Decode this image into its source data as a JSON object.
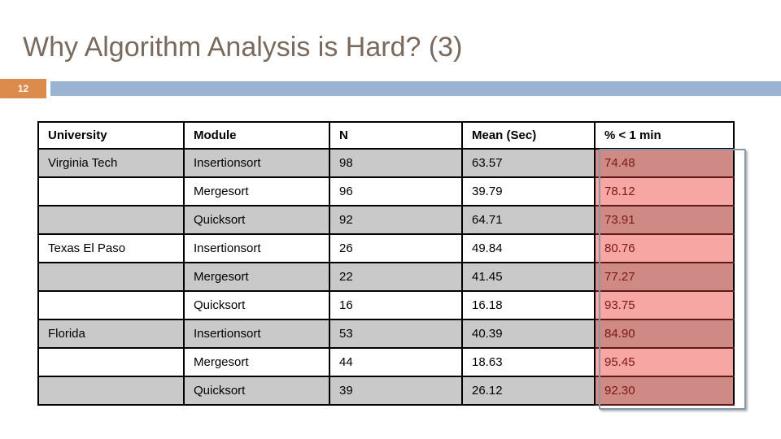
{
  "slide": {
    "title": "Why Algorithm Analysis is Hard? (3)",
    "slide_number": "12"
  },
  "colors": {
    "title_text": "#7a6a5e",
    "page_number_bg": "#dd8a4d",
    "accent_bar": "#9ab3d3",
    "row_gray": "#c9c9c9",
    "row_white": "#ffffff",
    "highlight_on_gray": "#cf8a85",
    "highlight_on_white": "#f6a7a3",
    "highlight_text": "#7c1815",
    "highlight_border": "#8898aa"
  },
  "chart_data": {
    "type": "table",
    "title": "Why Algorithm Analysis is Hard? (3)",
    "headers": [
      "University",
      "Module",
      "N",
      "Mean (Sec)",
      "% < 1 min"
    ],
    "rows": [
      {
        "university": "Virginia Tech",
        "module": "Insertionsort",
        "n": "98",
        "mean": "63.57",
        "pct": "74.48"
      },
      {
        "university": "",
        "module": "Mergesort",
        "n": "96",
        "mean": "39.79",
        "pct": "78.12"
      },
      {
        "university": "",
        "module": "Quicksort",
        "n": "92",
        "mean": "64.71",
        "pct": "73.91"
      },
      {
        "university": "Texas El Paso",
        "module": "Insertionsort",
        "n": "26",
        "mean": "49.84",
        "pct": "80.76"
      },
      {
        "university": "",
        "module": "Mergesort",
        "n": "22",
        "mean": "41.45",
        "pct": "77.27"
      },
      {
        "university": "",
        "module": "Quicksort",
        "n": "16",
        "mean": "16.18",
        "pct": "93.75"
      },
      {
        "university": "Florida",
        "module": "Insertionsort",
        "n": "53",
        "mean": "40.39",
        "pct": "84.90"
      },
      {
        "university": "",
        "module": "Mergesort",
        "n": "44",
        "mean": "18.63",
        "pct": "95.45"
      },
      {
        "university": "",
        "module": "Quicksort",
        "n": "39",
        "mean": "26.12",
        "pct": "92.30"
      }
    ]
  }
}
